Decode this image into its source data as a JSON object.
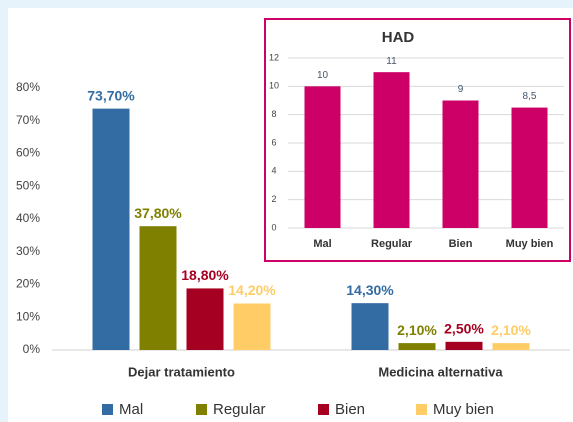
{
  "chart_data": [
    {
      "type": "bar",
      "categories": [
        "Dejar tratamiento",
        "Medicina alternativa"
      ],
      "series": [
        {
          "name": "Mal",
          "color": "#336ca3",
          "values": [
            73.7,
            14.3
          ],
          "value_labels": [
            "73,70%",
            "14,30%"
          ]
        },
        {
          "name": "Regular",
          "color": "#7f7f00",
          "values": [
            37.8,
            2.1
          ],
          "value_labels": [
            "37,80%",
            "2,10%"
          ]
        },
        {
          "name": "Bien",
          "color": "#a50021",
          "values": [
            18.8,
            2.5
          ],
          "value_labels": [
            "18,80%",
            "2,50%"
          ]
        },
        {
          "name": "Muy bien",
          "color": "#ffcc66",
          "values": [
            14.2,
            2.1
          ],
          "value_labels": [
            "14,20%",
            "2,10%"
          ]
        }
      ],
      "ylim": [
        0,
        80
      ],
      "yticks": [
        {
          "value": 0,
          "label": "0%"
        },
        {
          "value": 10,
          "label": "10%"
        },
        {
          "value": 20,
          "label": "20%"
        },
        {
          "value": 30,
          "label": "30%"
        },
        {
          "value": 40,
          "label": "40%"
        },
        {
          "value": 50,
          "label": "50%"
        },
        {
          "value": 60,
          "label": "60%"
        },
        {
          "value": 70,
          "label": "70%"
        },
        {
          "value": 80,
          "label": "80%"
        }
      ],
      "legend": "bottom"
    },
    {
      "type": "bar",
      "title": "HAD",
      "categories": [
        "Mal",
        "Regular",
        "Bien",
        "Muy bien"
      ],
      "values": [
        10,
        11,
        9,
        8.5
      ],
      "value_labels": [
        "10",
        "11",
        "9",
        "8,5"
      ],
      "color": "#cc0066",
      "ylim": [
        0,
        12
      ],
      "yticks": [
        0,
        2,
        4,
        6,
        8,
        10,
        12
      ],
      "grid": true
    }
  ]
}
